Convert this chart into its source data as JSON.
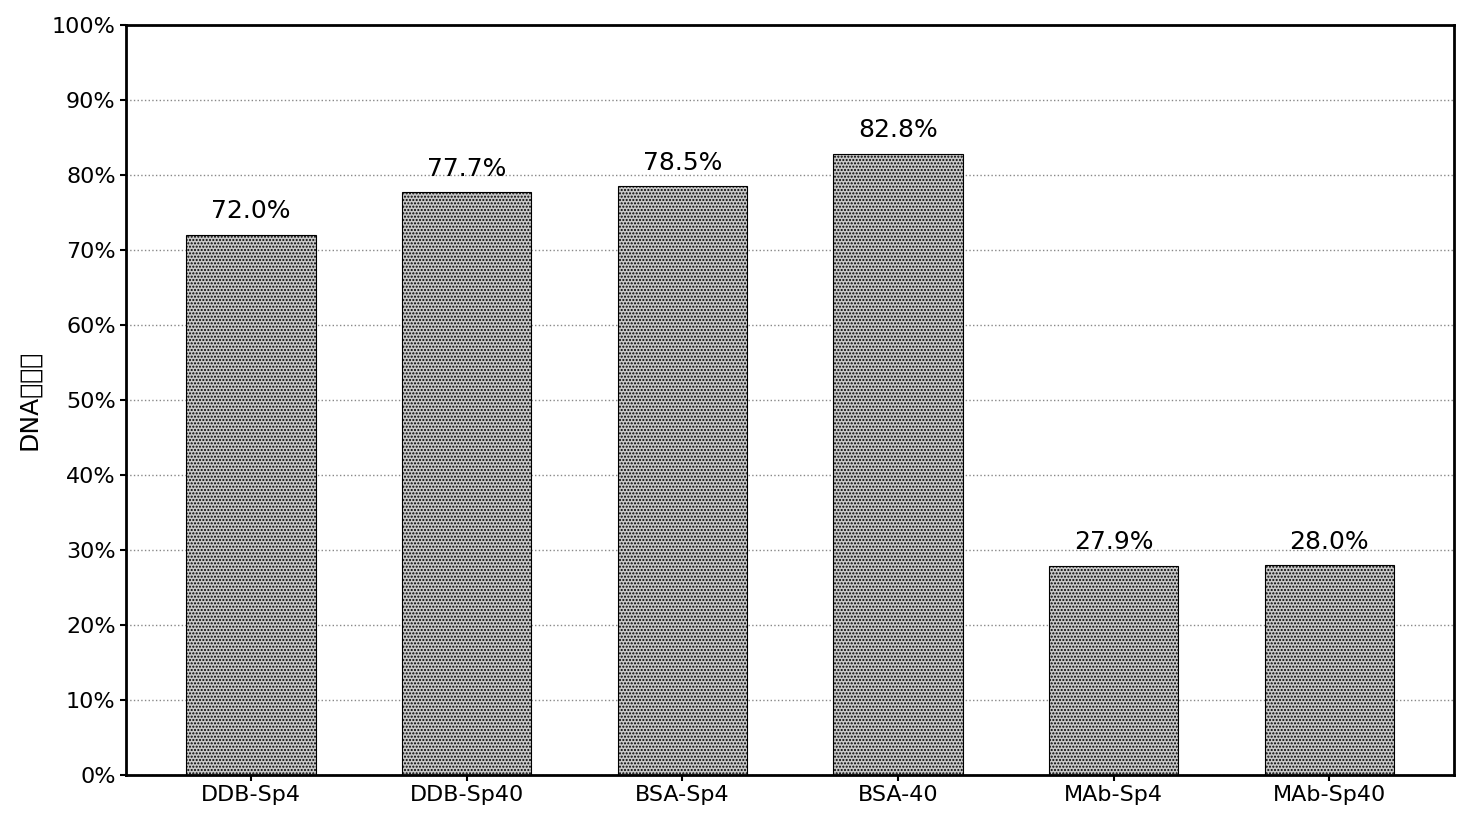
{
  "categories": [
    "DDB-Sp4",
    "DDB-Sp40",
    "BSA-Sp4",
    "BSA-40",
    "MAb-Sp4",
    "MAb-Sp40"
  ],
  "values": [
    72.0,
    77.7,
    78.5,
    82.8,
    27.9,
    28.0
  ],
  "labels": [
    "72.0%",
    "77.7%",
    "78.5%",
    "82.8%",
    "27.9%",
    "28.0%"
  ],
  "bar_color": "#c8c8c8",
  "bar_hatch": ".....",
  "ylabel": "DNA回收率",
  "ylim": [
    0,
    100
  ],
  "yticks": [
    0,
    10,
    20,
    30,
    40,
    50,
    60,
    70,
    80,
    90,
    100
  ],
  "ytick_labels": [
    "0%",
    "10%",
    "20%",
    "30%",
    "40%",
    "50%",
    "60%",
    "70%",
    "80%",
    "90%",
    "100%"
  ],
  "grid_color": "#888888",
  "background_color": "#ffffff",
  "label_fontsize": 18,
  "tick_fontsize": 16,
  "ylabel_fontsize": 18,
  "bar_width": 0.6,
  "spine_linewidth": 2.0
}
